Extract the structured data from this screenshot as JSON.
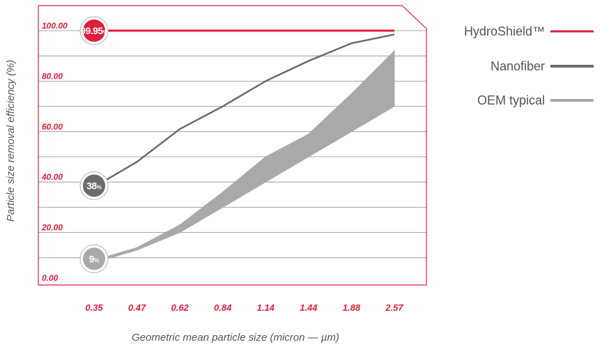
{
  "chart_data": {
    "type": "line",
    "title": "",
    "xlabel": "Geometric mean particle size (micron — µm)",
    "ylabel": "Particle size removal efficiency (%)",
    "categories": [
      "0.35",
      "0.47",
      "0.62",
      "0.84",
      "1.14",
      "1.44",
      "1.88",
      "2.57"
    ],
    "yticks": [
      "0.00",
      "20.00",
      "40.00",
      "60.00",
      "80.00",
      "100.00"
    ],
    "ylim": [
      0,
      100
    ],
    "grid": true,
    "legend_position": "right",
    "series": [
      {
        "name": "HydroShield™",
        "kind": "line",
        "color": "#e01e3c",
        "values": [
          100,
          100,
          100,
          100,
          100,
          100,
          100,
          100
        ],
        "badge": {
          "value": "99.95",
          "unit": "%"
        }
      },
      {
        "name": "Nanofiber",
        "kind": "line",
        "color": "#6b6b6d",
        "values": [
          38,
          48,
          61,
          70,
          80,
          88,
          95,
          98.5
        ],
        "badge": {
          "value": "38",
          "unit": "%"
        }
      },
      {
        "name": "OEM typical",
        "kind": "band",
        "color": "#a9a9ab",
        "upper": [
          9,
          14,
          23,
          36,
          50,
          59,
          75,
          92
        ],
        "lower": [
          8,
          13,
          20,
          30,
          40,
          50,
          60,
          70
        ],
        "badge": {
          "value": "9",
          "unit": "%"
        }
      }
    ],
    "axis_color": "#e01e3c"
  }
}
